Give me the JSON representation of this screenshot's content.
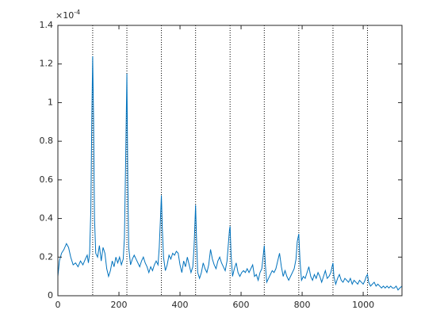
{
  "chart_data": {
    "type": "line",
    "x": [
      0,
      5,
      12,
      20,
      28,
      35,
      42,
      50,
      58,
      66,
      74,
      82,
      90,
      96,
      100,
      104,
      108,
      111,
      114,
      117,
      120,
      124,
      130,
      136,
      142,
      148,
      154,
      160,
      166,
      172,
      178,
      184,
      190,
      196,
      202,
      208,
      214,
      218,
      222,
      226,
      229,
      232,
      238,
      244,
      250,
      256,
      262,
      268,
      274,
      280,
      286,
      292,
      298,
      304,
      310,
      316,
      322,
      328,
      332,
      336,
      339,
      342,
      346,
      352,
      358,
      364,
      370,
      376,
      382,
      388,
      394,
      400,
      406,
      412,
      418,
      424,
      430,
      436,
      442,
      446,
      449,
      451,
      454,
      458,
      464,
      470,
      476,
      482,
      488,
      494,
      500,
      506,
      512,
      518,
      524,
      530,
      536,
      542,
      548,
      554,
      558,
      562,
      564,
      567,
      572,
      578,
      584,
      590,
      596,
      602,
      608,
      614,
      620,
      626,
      632,
      638,
      644,
      650,
      656,
      662,
      668,
      672,
      676,
      680,
      684,
      690,
      696,
      702,
      708,
      714,
      720,
      726,
      732,
      738,
      744,
      750,
      756,
      762,
      768,
      774,
      780,
      784,
      789,
      793,
      798,
      804,
      810,
      816,
      822,
      828,
      834,
      840,
      846,
      852,
      858,
      864,
      870,
      876,
      882,
      888,
      894,
      898,
      901,
      904,
      910,
      916,
      922,
      928,
      934,
      940,
      946,
      952,
      958,
      964,
      970,
      976,
      982,
      988,
      994,
      1000,
      1006,
      1010,
      1014,
      1018,
      1024,
      1030,
      1036,
      1042,
      1048,
      1054,
      1060,
      1066,
      1072,
      1078,
      1084,
      1090,
      1096,
      1102,
      1108,
      1114,
      1120,
      1127
    ],
    "values": [
      0.1,
      0.18,
      0.22,
      0.24,
      0.27,
      0.25,
      0.2,
      0.16,
      0.17,
      0.15,
      0.18,
      0.16,
      0.19,
      0.21,
      0.17,
      0.22,
      0.45,
      0.9,
      1.24,
      0.9,
      0.4,
      0.22,
      0.2,
      0.26,
      0.18,
      0.25,
      0.22,
      0.14,
      0.1,
      0.13,
      0.18,
      0.15,
      0.2,
      0.17,
      0.2,
      0.16,
      0.19,
      0.3,
      0.7,
      1.15,
      0.6,
      0.25,
      0.16,
      0.19,
      0.21,
      0.19,
      0.17,
      0.15,
      0.18,
      0.2,
      0.17,
      0.15,
      0.12,
      0.15,
      0.13,
      0.16,
      0.18,
      0.16,
      0.25,
      0.4,
      0.52,
      0.35,
      0.2,
      0.13,
      0.16,
      0.21,
      0.19,
      0.22,
      0.21,
      0.23,
      0.22,
      0.16,
      0.12,
      0.18,
      0.15,
      0.2,
      0.16,
      0.12,
      0.15,
      0.25,
      0.38,
      0.47,
      0.3,
      0.12,
      0.09,
      0.12,
      0.17,
      0.14,
      0.12,
      0.16,
      0.24,
      0.19,
      0.16,
      0.14,
      0.18,
      0.2,
      0.17,
      0.15,
      0.13,
      0.18,
      0.26,
      0.34,
      0.36,
      0.22,
      0.1,
      0.14,
      0.17,
      0.12,
      0.1,
      0.12,
      0.13,
      0.12,
      0.14,
      0.12,
      0.14,
      0.16,
      0.1,
      0.11,
      0.08,
      0.12,
      0.14,
      0.2,
      0.26,
      0.15,
      0.07,
      0.09,
      0.11,
      0.13,
      0.12,
      0.14,
      0.18,
      0.22,
      0.15,
      0.1,
      0.13,
      0.1,
      0.08,
      0.1,
      0.12,
      0.14,
      0.19,
      0.28,
      0.32,
      0.18,
      0.08,
      0.1,
      0.09,
      0.12,
      0.15,
      0.1,
      0.08,
      0.11,
      0.09,
      0.12,
      0.1,
      0.07,
      0.1,
      0.13,
      0.09,
      0.1,
      0.12,
      0.15,
      0.17,
      0.1,
      0.06,
      0.09,
      0.11,
      0.08,
      0.07,
      0.09,
      0.08,
      0.07,
      0.09,
      0.06,
      0.08,
      0.07,
      0.06,
      0.08,
      0.07,
      0.06,
      0.08,
      0.1,
      0.11,
      0.07,
      0.05,
      0.06,
      0.07,
      0.05,
      0.06,
      0.05,
      0.04,
      0.05,
      0.04,
      0.05,
      0.04,
      0.05,
      0.04,
      0.04,
      0.05,
      0.03,
      0.04,
      0.05
    ],
    "color": "#0072bd",
    "vlines": [
      114,
      226,
      339,
      451,
      564,
      676,
      789,
      901,
      1014
    ],
    "xlim": [
      0,
      1127
    ],
    "xticks": [
      0,
      200,
      400,
      600,
      800,
      1000
    ],
    "ylim": [
      0,
      1.4
    ],
    "yticks": [
      0,
      0.2,
      0.4,
      0.6,
      0.8,
      1,
      1.2,
      1.4
    ],
    "y_multiplier": "×10",
    "y_exponent": "-4"
  }
}
